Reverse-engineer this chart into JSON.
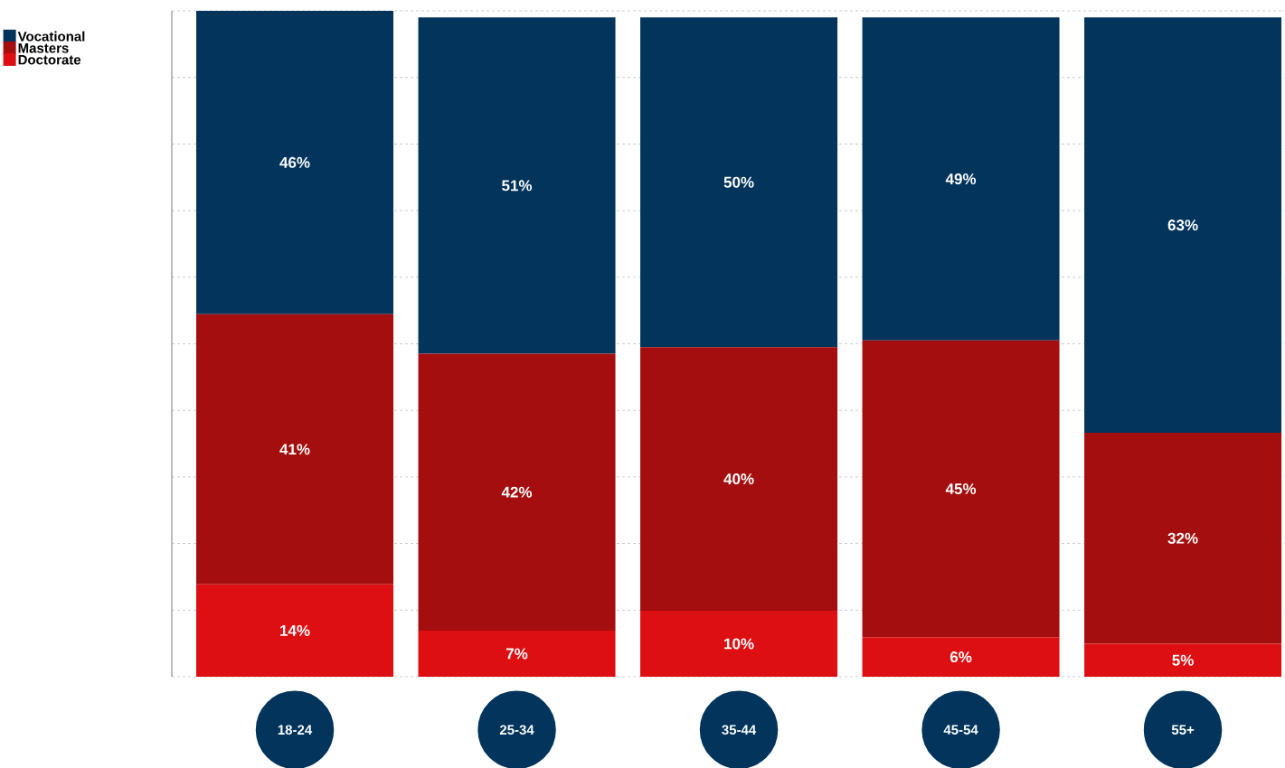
{
  "chart_data": {
    "type": "bar",
    "stacked": true,
    "categories": [
      "18-24",
      "25-34",
      "35-44",
      "45-54",
      "55+"
    ],
    "series": [
      {
        "name": "Doctorate",
        "color": "#de0f12",
        "values": [
          14,
          7,
          10,
          6,
          5
        ],
        "value_labels": [
          "14%",
          "7%",
          "10%",
          "6%",
          "5%"
        ]
      },
      {
        "name": "Masters",
        "color": "#a50e0e",
        "values": [
          41,
          42,
          40,
          45,
          32
        ],
        "value_labels": [
          "41%",
          "42%",
          "40%",
          "45%",
          "32%"
        ]
      },
      {
        "name": "Vocational",
        "color": "#02345c",
        "values": [
          46,
          51,
          50,
          49,
          63
        ],
        "value_labels": [
          "46%",
          "51%",
          "50%",
          "49%",
          "63%"
        ]
      }
    ],
    "tick_labels": "x",
    "grid": "y",
    "legend": "top left"
  }
}
